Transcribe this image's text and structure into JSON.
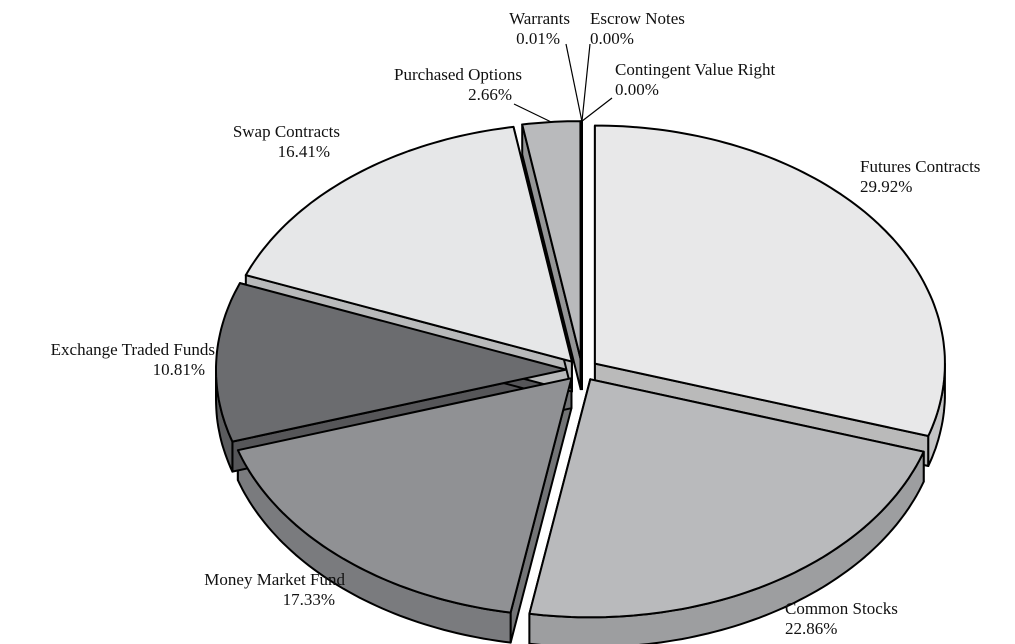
{
  "chart_data": {
    "type": "pie3d",
    "categories": [
      "Futures Contracts",
      "Common Stocks",
      "Money Market Fund",
      "Exchange Traded Funds",
      "Swap Contracts",
      "Purchased Options",
      "Warrants",
      "Escrow Notes",
      "Contingent Value Right"
    ],
    "values": [
      29.92,
      22.86,
      17.33,
      10.81,
      16.41,
      2.66,
      0.01,
      0.0,
      0.0
    ],
    "value_labels": [
      "29.92%",
      "22.86%",
      "17.33%",
      "10.81%",
      "16.41%",
      "2.66%",
      "0.01%",
      "0.00%",
      "0.00%"
    ],
    "colors": [
      "#e8e8e9",
      "#b9babc",
      "#909194",
      "#6b6c6f",
      "#e6e7e8",
      "#b9babc",
      "#555555",
      "#555555",
      "#555555"
    ]
  }
}
